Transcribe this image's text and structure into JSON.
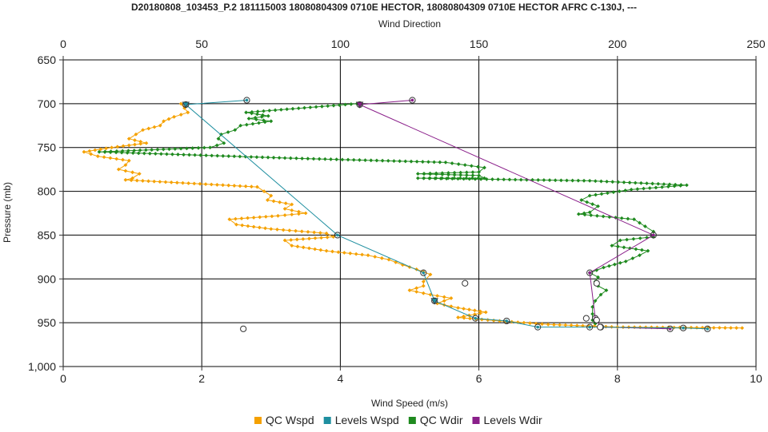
{
  "chart_data": {
    "type": "line",
    "title": "D20180808_103453_P.2 181115003 18080804309 0710E HECTOR, 18080804309 0710E HECTOR AFRC C-130J, ---",
    "x_bottom": {
      "label": "Wind Speed (m/s)",
      "range": [
        0,
        10
      ],
      "ticks": [
        "0",
        "2",
        "4",
        "6",
        "8",
        "10"
      ]
    },
    "x_top": {
      "label": "Wind Direction",
      "range": [
        0,
        250
      ],
      "ticks": [
        "0",
        "50",
        "100",
        "150",
        "200",
        "250"
      ]
    },
    "y": {
      "label": "Pressure (mb)",
      "range": [
        650,
        1000
      ],
      "inverted": true,
      "ticks": [
        "650",
        "700",
        "750",
        "800",
        "850",
        "900",
        "950",
        "1,000"
      ]
    },
    "grid": true,
    "legend_position": "bottom",
    "series": [
      {
        "name": "QC Wspd",
        "axis": "bottom",
        "color": "#f5a100",
        "marker": "diamond",
        "points": [
          [
            1.7,
            700
          ],
          [
            1.75,
            705
          ],
          [
            1.8,
            710
          ],
          [
            1.6,
            715
          ],
          [
            1.45,
            720
          ],
          [
            1.4,
            725
          ],
          [
            1.15,
            730
          ],
          [
            1.05,
            735
          ],
          [
            0.95,
            740
          ],
          [
            1.2,
            745
          ],
          [
            0.7,
            750
          ],
          [
            0.3,
            755
          ],
          [
            0.5,
            760
          ],
          [
            0.95,
            765
          ],
          [
            0.9,
            770
          ],
          [
            0.8,
            775
          ],
          [
            1.1,
            780
          ],
          [
            1.0,
            785
          ],
          [
            0.9,
            787
          ],
          [
            2.8,
            795
          ],
          [
            2.9,
            800
          ],
          [
            3.0,
            805
          ],
          [
            2.95,
            810
          ],
          [
            3.3,
            815
          ],
          [
            3.2,
            820
          ],
          [
            3.5,
            825
          ],
          [
            3.1,
            828
          ],
          [
            2.4,
            832
          ],
          [
            2.5,
            838
          ],
          [
            3.0,
            843
          ],
          [
            3.8,
            848
          ],
          [
            3.9,
            852
          ],
          [
            3.2,
            856
          ],
          [
            3.3,
            862
          ],
          [
            3.8,
            868
          ],
          [
            4.4,
            873
          ],
          [
            4.7,
            878
          ],
          [
            4.9,
            884
          ],
          [
            5.1,
            889
          ],
          [
            5.3,
            895
          ],
          [
            5.2,
            903
          ],
          [
            5.2,
            908
          ],
          [
            5.0,
            913
          ],
          [
            5.3,
            918
          ],
          [
            5.6,
            922
          ],
          [
            5.4,
            928
          ],
          [
            5.7,
            933
          ],
          [
            6.1,
            938
          ],
          [
            5.7,
            944
          ],
          [
            6.3,
            948
          ],
          [
            7.0,
            952
          ],
          [
            8.0,
            955
          ],
          [
            9.8,
            956
          ]
        ]
      },
      {
        "name": "Levels Wspd",
        "axis": "bottom",
        "color": "#1f8fa0",
        "marker": "triangle",
        "points": [
          [
            2.65,
            696
          ],
          [
            1.77,
            701
          ],
          [
            3.96,
            850
          ],
          [
            5.2,
            893
          ],
          [
            5.36,
            925
          ],
          [
            5.95,
            945
          ],
          [
            6.4,
            948
          ],
          [
            6.85,
            955
          ],
          [
            7.6,
            955
          ],
          [
            8.95,
            956
          ],
          [
            9.3,
            957
          ]
        ]
      },
      {
        "name": "QC Wdir",
        "axis": "top",
        "color": "#1f8a1f",
        "marker": "diamond",
        "points": [
          [
            106,
            700
          ],
          [
            66,
            710
          ],
          [
            74,
            714
          ],
          [
            67,
            717
          ],
          [
            75,
            720
          ],
          [
            64,
            725
          ],
          [
            62,
            730
          ],
          [
            57,
            735
          ],
          [
            56,
            740
          ],
          [
            58,
            745
          ],
          [
            53,
            750
          ],
          [
            13,
            755
          ],
          [
            80,
            762
          ],
          [
            138,
            767
          ],
          [
            152,
            773
          ],
          [
            150,
            778
          ],
          [
            128,
            780
          ],
          [
            150,
            782
          ],
          [
            152,
            785
          ],
          [
            128,
            785
          ],
          [
            190,
            788
          ],
          [
            225,
            793
          ],
          [
            205,
            798
          ],
          [
            190,
            805
          ],
          [
            187,
            810
          ],
          [
            193,
            817
          ],
          [
            190,
            824
          ],
          [
            186,
            826
          ],
          [
            206,
            832
          ],
          [
            210,
            840
          ],
          [
            213,
            846
          ],
          [
            213,
            852
          ],
          [
            201,
            856
          ],
          [
            198,
            862
          ],
          [
            211,
            868
          ],
          [
            208,
            873
          ],
          [
            203,
            880
          ],
          [
            195,
            887
          ],
          [
            190,
            893
          ],
          [
            193,
            898
          ],
          [
            192,
            903
          ],
          [
            193,
            908
          ],
          [
            196,
            913
          ],
          [
            194,
            918
          ],
          [
            192,
            925
          ],
          [
            191,
            932
          ],
          [
            191,
            940
          ],
          [
            191,
            947
          ],
          [
            192,
            951
          ]
        ]
      },
      {
        "name": "Levels Wdir",
        "axis": "top",
        "color": "#8a1f8a",
        "marker": "triangle",
        "points": [
          [
            126,
            696
          ],
          [
            107,
            701
          ],
          [
            213,
            850
          ],
          [
            190,
            893
          ],
          [
            192,
            945
          ],
          [
            194,
            955
          ],
          [
            219,
            957
          ]
        ]
      }
    ],
    "extra_markers": [
      [
        2.6,
        957
      ],
      [
        5.8,
        905
      ],
      [
        7.7,
        905
      ],
      [
        7.7,
        947
      ],
      [
        7.75,
        955
      ],
      [
        7.55,
        945
      ]
    ]
  }
}
